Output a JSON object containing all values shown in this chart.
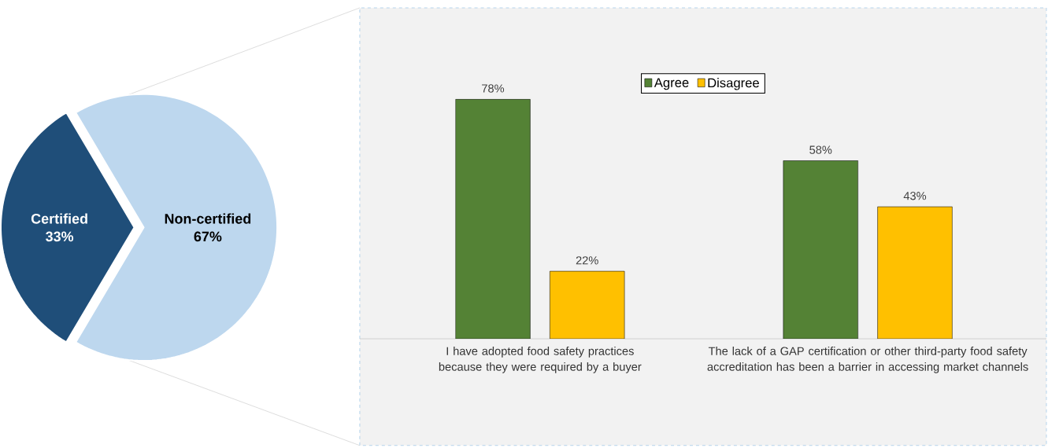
{
  "chart_data": [
    {
      "type": "pie",
      "categories": [
        "Certified",
        "Non-certified"
      ],
      "values": [
        33,
        67
      ],
      "colors": [
        "#1f4e79",
        "#bdd7ee"
      ],
      "value_labels": [
        "33%",
        "67%"
      ]
    },
    {
      "type": "bar",
      "categories": [
        "I have adopted food safety practices because they were required by a buyer",
        "The lack of a GAP certification or other third-party food safety accreditation has been a barrier in accessing market channels"
      ],
      "legend": "top",
      "series": [
        {
          "name": "Agree",
          "color": "#548235",
          "values": [
            78,
            58
          ],
          "value_labels": [
            "78%",
            "58%"
          ]
        },
        {
          "name": "Disagree",
          "color": "#ffc000",
          "values": [
            22,
            43
          ],
          "value_labels": [
            "22%",
            "43%"
          ]
        }
      ]
    }
  ]
}
